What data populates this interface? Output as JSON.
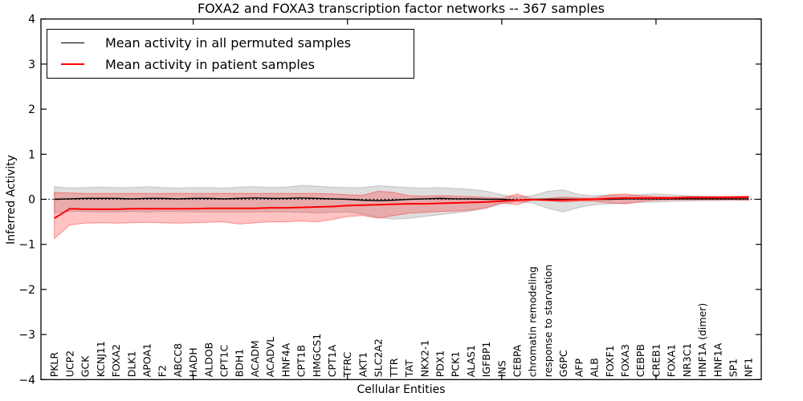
{
  "chart_data": {
    "type": "line",
    "title": "FOXA2 and FOXA3 transcription factor networks -- 367 samples",
    "xlabel": "Cellular Entities",
    "ylabel": "Inferred Activity",
    "ylim": [
      -4,
      4
    ],
    "yticks": [
      "4",
      "3",
      "2",
      "1",
      "0",
      "−1",
      "−2",
      "−3",
      "−4"
    ],
    "grid": false,
    "legend_position": "upper left",
    "zero_line": {
      "style": "dotted",
      "color": "#000000"
    },
    "xtick_major_indices": [
      9,
      19,
      29,
      39
    ],
    "categories": [
      "PKLR",
      "UCP2",
      "GCK",
      "KCNJ11",
      "FOXA2",
      "DLK1",
      "APOA1",
      "F2",
      "ABCC8",
      "HADH",
      "ALDOB",
      "CPT1C",
      "BDH1",
      "ACADM",
      "ACADVL",
      "HNF4A",
      "CPT1B",
      "HMGCS1",
      "CPT1A",
      "TFRC",
      "AKT1",
      "SLC2A2",
      "TTR",
      "TAT",
      "NKX2-1",
      "PDX1",
      "PCK1",
      "ALAS1",
      "IGFBP1",
      "INS",
      "CEBPA",
      "chromatin remodeling",
      "response to starvation",
      "G6PC",
      "AFP",
      "ALB",
      "FOXF1",
      "FOXA3",
      "CEBPB",
      "CREB1",
      "FOXA1",
      "NR3C1",
      "HNF1A (dimer)",
      "HNF1A",
      "SP1",
      "NF1"
    ],
    "series": [
      {
        "name": "Mean activity in all permuted samples",
        "color": "#000000",
        "line_width": 1.4,
        "values": [
          0.0,
          0.01,
          0.02,
          0.02,
          0.02,
          0.01,
          0.02,
          0.02,
          0.01,
          0.02,
          0.02,
          0.01,
          0.02,
          0.03,
          0.02,
          0.02,
          0.03,
          0.02,
          0.01,
          0.0,
          -0.02,
          -0.03,
          -0.02,
          0.0,
          0.01,
          0.02,
          0.01,
          0.01,
          0.0,
          0.0,
          -0.02,
          0.0,
          0.0,
          0.0,
          0.0,
          0.0,
          0.0,
          0.01,
          0.01,
          0.01,
          0.01,
          0.01,
          0.01,
          0.01,
          0.01,
          0.01
        ]
      },
      {
        "name": "Mean activity in patient samples",
        "color": "#ff0000",
        "line_width": 2.0,
        "values": [
          -0.42,
          -0.21,
          -0.22,
          -0.22,
          -0.22,
          -0.21,
          -0.21,
          -0.21,
          -0.21,
          -0.21,
          -0.2,
          -0.2,
          -0.2,
          -0.2,
          -0.19,
          -0.19,
          -0.18,
          -0.17,
          -0.16,
          -0.14,
          -0.13,
          -0.12,
          -0.11,
          -0.1,
          -0.1,
          -0.09,
          -0.08,
          -0.07,
          -0.06,
          -0.04,
          -0.02,
          -0.01,
          -0.02,
          -0.02,
          -0.01,
          0.0,
          0.02,
          0.03,
          0.03,
          0.03,
          0.03,
          0.04,
          0.04,
          0.04,
          0.04,
          0.05
        ]
      }
    ],
    "bands": [
      {
        "name": "permuted-samples-band",
        "color": "#999999",
        "opacity": 0.32,
        "upper": [
          0.28,
          0.25,
          0.26,
          0.27,
          0.26,
          0.26,
          0.28,
          0.26,
          0.25,
          0.26,
          0.26,
          0.25,
          0.27,
          0.28,
          0.26,
          0.27,
          0.31,
          0.29,
          0.27,
          0.26,
          0.26,
          0.3,
          0.28,
          0.26,
          0.25,
          0.26,
          0.24,
          0.22,
          0.18,
          0.1,
          0.05,
          0.08,
          0.18,
          0.21,
          0.11,
          0.08,
          0.09,
          0.08,
          0.1,
          0.12,
          0.1,
          0.08,
          0.07,
          0.06,
          0.06,
          0.06
        ],
        "lower": [
          -0.3,
          -0.27,
          -0.27,
          -0.28,
          -0.28,
          -0.27,
          -0.28,
          -0.27,
          -0.27,
          -0.28,
          -0.28,
          -0.28,
          -0.29,
          -0.28,
          -0.28,
          -0.28,
          -0.29,
          -0.3,
          -0.29,
          -0.28,
          -0.33,
          -0.4,
          -0.44,
          -0.42,
          -0.38,
          -0.34,
          -0.3,
          -0.26,
          -0.2,
          -0.1,
          -0.05,
          -0.08,
          -0.2,
          -0.28,
          -0.18,
          -0.12,
          -0.1,
          -0.09,
          -0.07,
          -0.06,
          -0.05,
          -0.04,
          -0.03,
          -0.03,
          -0.02,
          -0.02
        ]
      },
      {
        "name": "patient-samples-band",
        "color": "#ff2222",
        "opacity": 0.27,
        "upper": [
          0.15,
          0.14,
          0.13,
          0.13,
          0.13,
          0.13,
          0.13,
          0.13,
          0.13,
          0.13,
          0.13,
          0.13,
          0.13,
          0.13,
          0.13,
          0.13,
          0.13,
          0.13,
          0.12,
          0.1,
          0.09,
          0.18,
          0.15,
          0.08,
          0.07,
          0.08,
          0.07,
          0.06,
          0.04,
          0.02,
          0.12,
          0.0,
          0.02,
          0.05,
          0.03,
          0.03,
          0.1,
          0.12,
          0.08,
          0.06,
          0.05,
          0.06,
          0.06,
          0.06,
          0.07,
          0.07
        ],
        "lower": [
          -0.87,
          -0.57,
          -0.53,
          -0.52,
          -0.53,
          -0.52,
          -0.51,
          -0.52,
          -0.53,
          -0.52,
          -0.51,
          -0.5,
          -0.55,
          -0.52,
          -0.5,
          -0.5,
          -0.48,
          -0.5,
          -0.45,
          -0.38,
          -0.36,
          -0.42,
          -0.36,
          -0.31,
          -0.29,
          -0.27,
          -0.26,
          -0.24,
          -0.18,
          -0.08,
          -0.12,
          -0.01,
          -0.03,
          -0.06,
          -0.04,
          -0.04,
          -0.08,
          -0.1,
          -0.05,
          -0.02,
          -0.01,
          -0.01,
          -0.01,
          -0.01,
          -0.01,
          -0.02
        ]
      }
    ]
  }
}
